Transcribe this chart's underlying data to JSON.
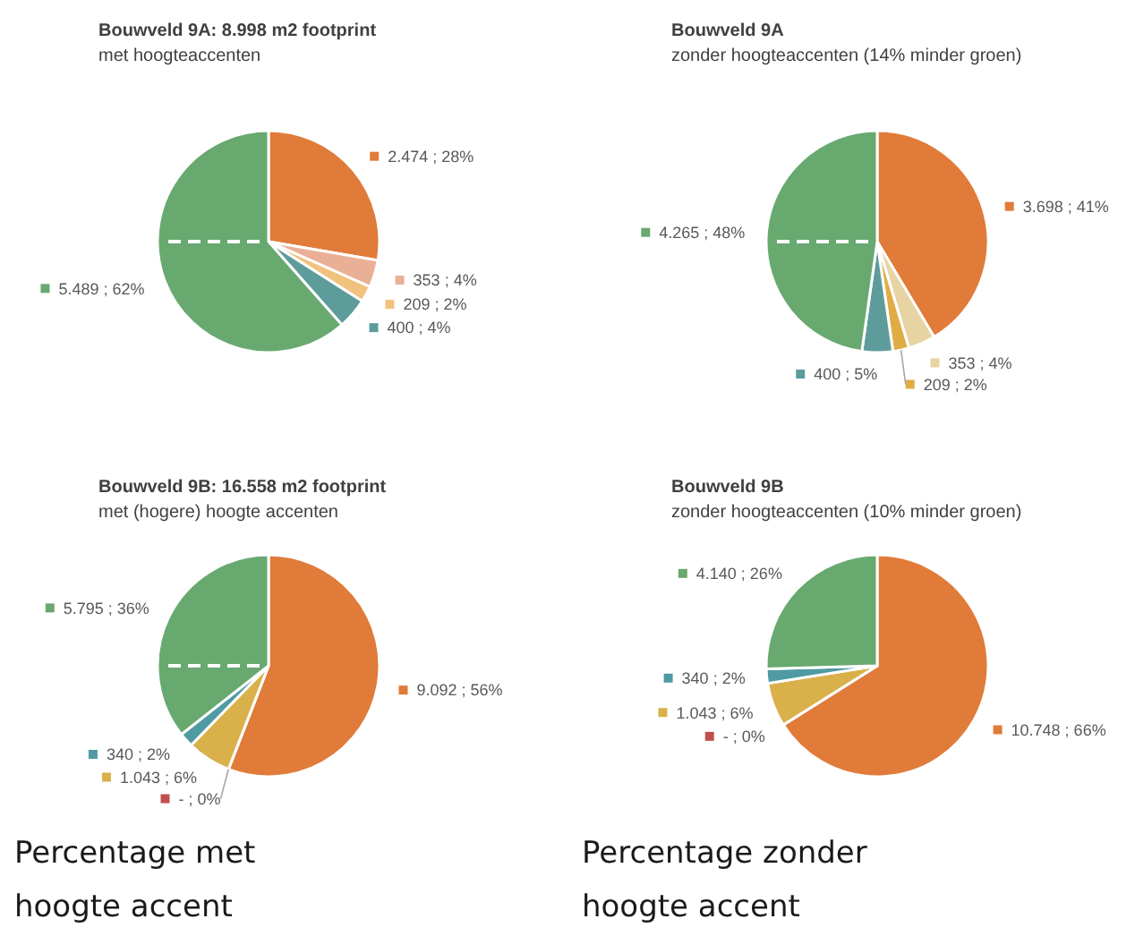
{
  "chart_data": [
    {
      "type": "pie",
      "title": "Bouwveld 9A:   8.998 m2 footprint",
      "subtitle": "met hoogteaccenten",
      "categories": [
        null,
        null,
        null,
        null,
        null
      ],
      "values": [
        2474,
        353,
        209,
        400,
        5489
      ],
      "colors": [
        "#e07b39",
        "#eab096",
        "#f1c27d",
        "#5e9c9c",
        "#68a96f"
      ],
      "value_labels": [
        "2.474 ; 28%",
        "353 ; 4%",
        "209 ; 2%",
        "400 ; 4%",
        "5.489 ; 62%"
      ]
    },
    {
      "type": "pie",
      "title": "Bouwveld 9A",
      "subtitle": "zonder hoogteaccenten (14% minder groen)",
      "categories": [
        null,
        null,
        null,
        null,
        null
      ],
      "values": [
        3698,
        353,
        209,
        400,
        4265
      ],
      "colors": [
        "#e07b39",
        "#e8d3a2",
        "#e0ad45",
        "#5e9c9c",
        "#68a96f"
      ],
      "value_labels": [
        "3.698 ; 41%",
        "353 ; 4%",
        "209 ; 2%",
        "400 ; 5%",
        "4.265 ; 48%"
      ]
    },
    {
      "type": "pie",
      "title": "Bouwveld 9B:   16.558 m2 footprint",
      "subtitle": "met (hogere) hoogte accenten",
      "categories": [
        null,
        null,
        null,
        null,
        null
      ],
      "values": [
        9092,
        0,
        1043,
        340,
        5795
      ],
      "colors": [
        "#e07b39",
        "#c0504d",
        "#d9b04a",
        "#4f9aa3",
        "#68a96f"
      ],
      "value_labels": [
        "9.092 ; 56%",
        "- ; 0%",
        "1.043 ; 6%",
        "340 ; 2%",
        "5.795 ; 36%"
      ],
      "annotations": [
        "Percentage met hoogte accent"
      ]
    },
    {
      "type": "pie",
      "title": "Bouwveld 9B",
      "subtitle": "zonder hoogteaccenten (10% minder groen)",
      "categories": [
        null,
        null,
        null,
        null,
        null
      ],
      "values": [
        10748,
        0,
        1043,
        340,
        4140
      ],
      "colors": [
        "#e07b39",
        "#c0504d",
        "#d9b04a",
        "#4f9aa3",
        "#68a96f"
      ],
      "value_labels": [
        "10.748 ; 66%",
        "- ; 0%",
        "1.043 ; 6%",
        "340 ; 2%",
        "4.140 ; 26%"
      ],
      "annotations": [
        "Percentage zonder hoogte accent"
      ]
    }
  ]
}
